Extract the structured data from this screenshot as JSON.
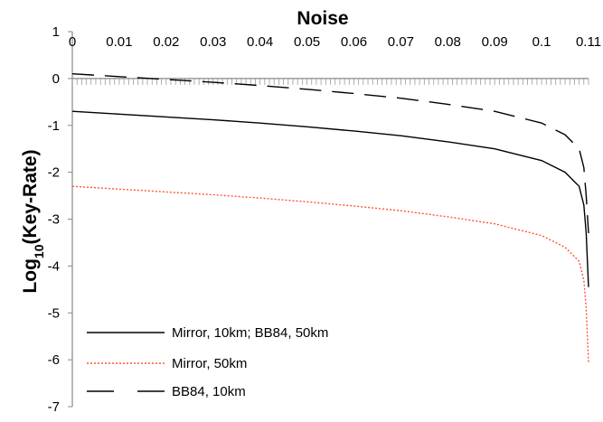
{
  "chart_data": {
    "type": "line",
    "title": "Noise",
    "xlabel": "",
    "ylabel_main": "Log",
    "ylabel_sub": "10",
    "ylabel_tail": "(Key-Rate)",
    "x_ticks": [
      "0",
      "0.01",
      "0.02",
      "0.03",
      "0.04",
      "0.05",
      "0.06",
      "0.07",
      "0.08",
      "0.09",
      "0.1",
      "0.11"
    ],
    "y_ticks": [
      "1",
      "0",
      "-1",
      "-2",
      "-3",
      "-4",
      "-5",
      "-6",
      "-7"
    ],
    "xlim": [
      0,
      0.11
    ],
    "ylim": [
      -7,
      1
    ],
    "x_axis_position": "top",
    "grid": false,
    "legend_placement": "bottom-left",
    "series": [
      {
        "name": "Mirror, 10km;  BB84, 50km",
        "color": "#000000",
        "dash": "solid",
        "x": [
          0,
          0.01,
          0.02,
          0.03,
          0.04,
          0.05,
          0.06,
          0.07,
          0.08,
          0.09,
          0.1,
          0.105,
          0.108,
          0.109,
          0.1095,
          0.11
        ],
        "y": [
          -0.7,
          -0.76,
          -0.82,
          -0.88,
          -0.95,
          -1.03,
          -1.12,
          -1.22,
          -1.35,
          -1.5,
          -1.75,
          -2.0,
          -2.3,
          -2.7,
          -3.3,
          -4.45
        ]
      },
      {
        "name": "Mirror, 50km",
        "color": "#ff5533",
        "dash": "dotted",
        "x": [
          0,
          0.01,
          0.02,
          0.03,
          0.04,
          0.05,
          0.06,
          0.07,
          0.08,
          0.09,
          0.1,
          0.105,
          0.108,
          0.109,
          0.1095,
          0.11
        ],
        "y": [
          -2.3,
          -2.36,
          -2.42,
          -2.48,
          -2.55,
          -2.63,
          -2.72,
          -2.82,
          -2.95,
          -3.1,
          -3.35,
          -3.6,
          -3.9,
          -4.3,
          -4.9,
          -6.05
        ]
      },
      {
        "name": "BB84, 10km",
        "color": "#000000",
        "dash": "dashed",
        "x": [
          0,
          0.01,
          0.02,
          0.03,
          0.04,
          0.05,
          0.06,
          0.07,
          0.08,
          0.09,
          0.1,
          0.105,
          0.108,
          0.109,
          0.1095,
          0.11
        ],
        "y": [
          0.1,
          0.04,
          -0.02,
          -0.08,
          -0.15,
          -0.23,
          -0.32,
          -0.42,
          -0.55,
          -0.7,
          -0.95,
          -1.2,
          -1.5,
          -1.9,
          -2.5,
          -3.3
        ]
      }
    ]
  }
}
